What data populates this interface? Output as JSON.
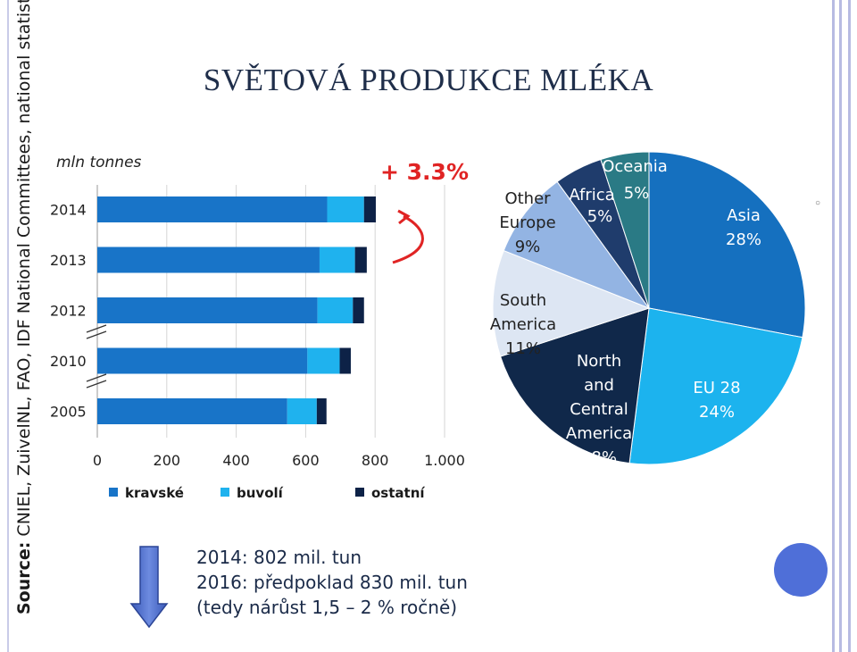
{
  "title": "SVĚTOVÁ PRODUKCE MLÉKA",
  "source": {
    "label": "Source:",
    "text": " CNIEL, ZuivelNL, FAO, IDF National Committees, national statistics."
  },
  "unit": "mln tonnes",
  "growth_label": "+ 3.3%",
  "legend": [
    {
      "label": "kravské",
      "color": "#1874c8"
    },
    {
      "label": "buvolí",
      "color": "#1fb2ee"
    },
    {
      "label": "ostatní",
      "color": "#0d2247"
    }
  ],
  "notes": [
    "2014: 802 mil. tun",
    "2016: předpoklad 830 mil. tun",
    "(tedy nárůst 1,5 – 2 % ročně)"
  ],
  "chart_data": [
    {
      "type": "bar",
      "orientation": "horizontal",
      "stacked": true,
      "categories": [
        "2014",
        "2013",
        "2012",
        "2010",
        "2005"
      ],
      "series": [
        {
          "name": "kravské",
          "color": "#1874c8",
          "values": [
            662,
            640,
            634,
            605,
            547
          ]
        },
        {
          "name": "buvolí",
          "color": "#1fb2ee",
          "values": [
            106,
            102,
            102,
            93,
            85
          ]
        },
        {
          "name": "ostatní",
          "color": "#0d2247",
          "values": [
            34,
            34,
            32,
            32,
            28
          ]
        }
      ],
      "xlim": [
        0,
        1000
      ],
      "xticks": [
        "0",
        "200",
        "400",
        "600",
        "800",
        "1.000"
      ],
      "xlabel": "",
      "ylabel": "mln tonnes",
      "grid": true
    },
    {
      "type": "pie",
      "slices": [
        {
          "label": "Asia",
          "value": 28,
          "text": "28%",
          "color": "#1570bf",
          "text_color": "#ffffff"
        },
        {
          "label": "EU 28",
          "value": 24,
          "text": "24%",
          "color": "#1cb3ee",
          "text_color": "#ffffff"
        },
        {
          "label": "North and Central America",
          "value": 18,
          "text": "18%",
          "color": "#10284a",
          "text_color": "#ffffff"
        },
        {
          "label": "South America",
          "value": 11,
          "text": "11%",
          "color": "#dde6f3",
          "text_color": "#222222"
        },
        {
          "label": "Other Europe",
          "value": 9,
          "text": "9%",
          "color": "#93b4e3",
          "text_color": "#222222"
        },
        {
          "label": "Africa",
          "value": 5,
          "text": "5%",
          "color": "#1f3c6c",
          "text_color": "#ffffff"
        },
        {
          "label": "Oceania",
          "value": 5,
          "text": "5%",
          "color": "#2a7a85",
          "text_color": "#ffffff"
        }
      ]
    }
  ]
}
